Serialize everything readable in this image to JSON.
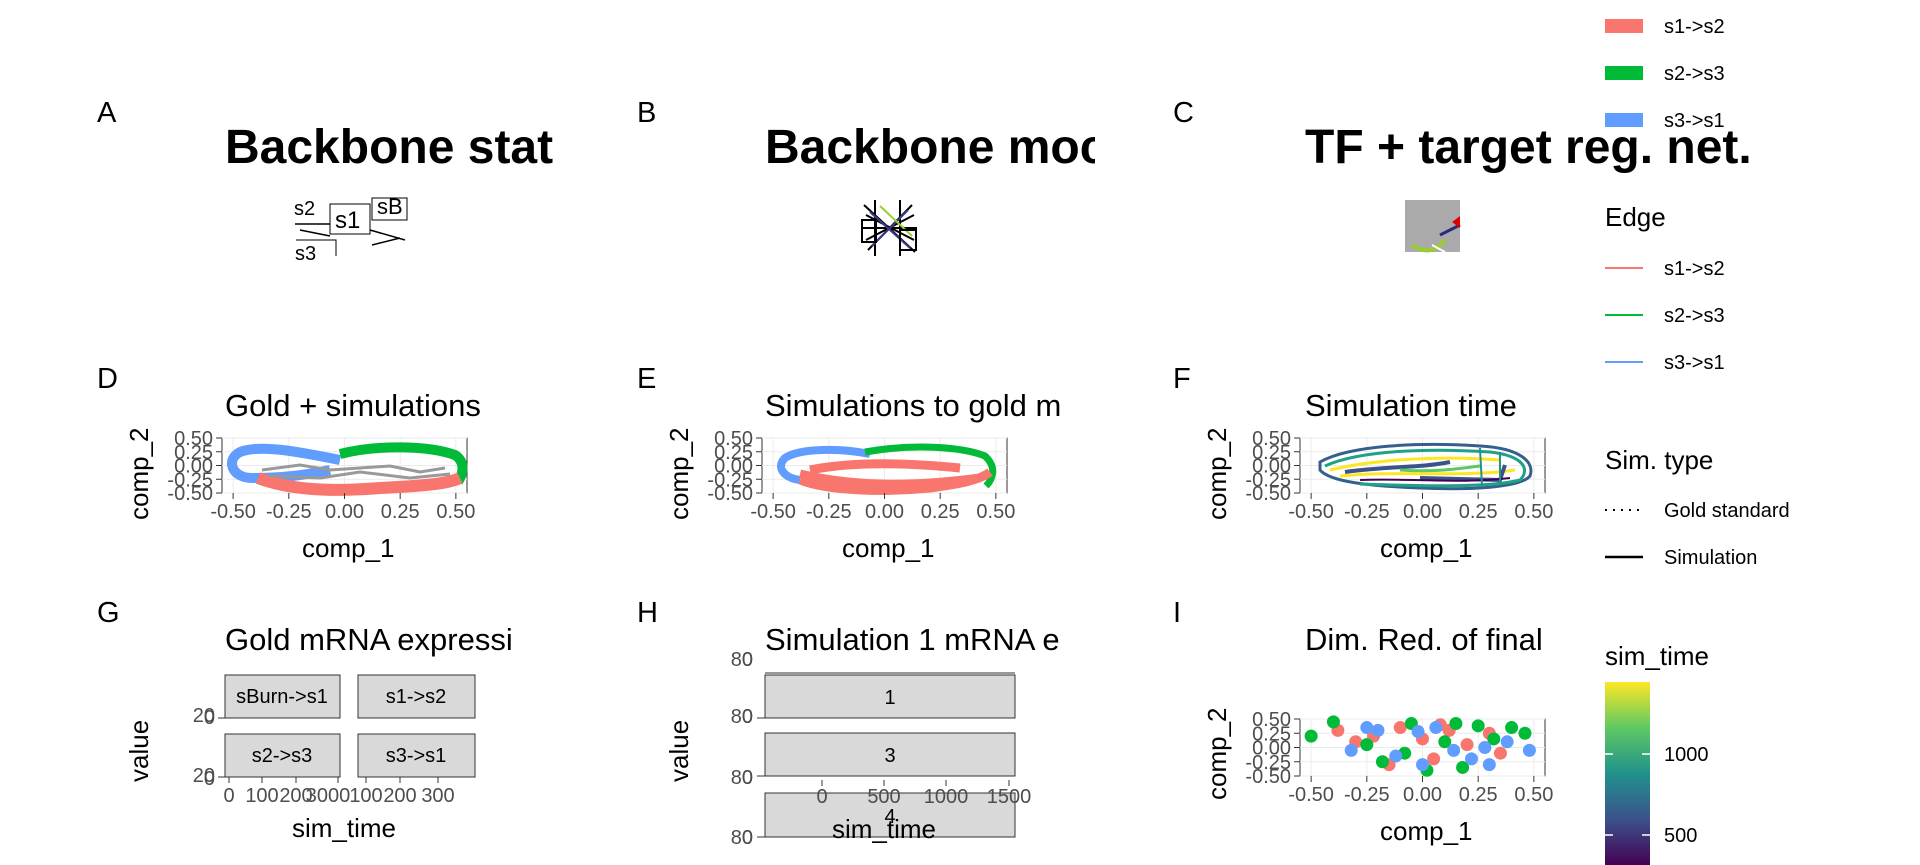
{
  "panels": [
    {
      "letter": "A",
      "title": "Backbone stat"
    },
    {
      "letter": "B",
      "title": "Backbone moc"
    },
    {
      "letter": "C",
      "title": "TF + target reg. net."
    },
    {
      "letter": "D",
      "title": "Gold + simulations"
    },
    {
      "letter": "E",
      "title": "Simulations to gold m"
    },
    {
      "letter": "F",
      "title": "Simulation time"
    },
    {
      "letter": "G",
      "title": "Gold mRNA expressi"
    },
    {
      "letter": "H",
      "title": "Simulation 1 mRNA e"
    },
    {
      "letter": "I",
      "title": "Dim. Red. of final"
    }
  ],
  "graph_labels": {
    "s1": "s1",
    "s2": "s2",
    "s3": "s3",
    "sburn": "sB"
  },
  "legend": {
    "milestones": [
      "s1->s2",
      "s2->s3",
      "s3->s1"
    ],
    "edge_title": "Edge",
    "edges": [
      "s1->s2",
      "s2->s3",
      "s3->s1"
    ],
    "simtype_title": "Sim. type",
    "simtypes": [
      "Gold standard",
      "Simulation"
    ],
    "simtime_title": "sim_time",
    "simtime_ticks": [
      "1000",
      "500"
    ],
    "colors": {
      "s1->s2": "#F8766D",
      "s2->s3": "#00BA38",
      "s3->s1": "#619CFF"
    }
  },
  "chart_data": [
    {
      "panel": "D",
      "type": "line",
      "xlabel": "comp_1",
      "ylabel": "comp_2",
      "xlim": [
        -0.55,
        0.55
      ],
      "ylim": [
        -0.5,
        0.5
      ],
      "xticks": [
        "-0.50",
        "-0.25",
        "0.00",
        "0.25",
        "0.50"
      ],
      "yticks": [
        "0.50",
        "0.25",
        "0.00",
        "-0.25",
        "-0.50"
      ],
      "grid": true,
      "series": [
        {
          "name": "s3->s1",
          "x": [
            -0.05,
            -0.2,
            -0.38,
            -0.45,
            -0.42,
            -0.3,
            -0.15
          ],
          "y": [
            0.32,
            0.34,
            0.28,
            0.05,
            -0.18,
            -0.3,
            -0.28
          ]
        },
        {
          "name": "s2->s3",
          "x": [
            -0.05,
            0.1,
            0.3,
            0.42,
            0.46,
            0.44
          ],
          "y": [
            0.32,
            0.36,
            0.33,
            0.25,
            0.05,
            -0.1
          ]
        },
        {
          "name": "s1->s2",
          "x": [
            -0.15,
            0.0,
            0.2,
            0.35,
            0.44
          ],
          "y": [
            -0.28,
            -0.35,
            -0.38,
            -0.32,
            -0.1
          ]
        }
      ]
    },
    {
      "panel": "E",
      "type": "line",
      "xlabel": "comp_1",
      "ylabel": "comp_2",
      "xlim": [
        -0.55,
        0.55
      ],
      "ylim": [
        -0.5,
        0.5
      ],
      "xticks": [
        "-0.50",
        "-0.25",
        "0.00",
        "0.25",
        "0.50"
      ],
      "yticks": [
        "0.50",
        "0.25",
        "0.00",
        "-0.25",
        "-0.50"
      ],
      "grid": true
    },
    {
      "panel": "F",
      "type": "line",
      "xlabel": "comp_1",
      "ylabel": "comp_2",
      "xlim": [
        -0.55,
        0.55
      ],
      "ylim": [
        -0.5,
        0.5
      ],
      "xticks": [
        "-0.50",
        "-0.25",
        "0.00",
        "0.25",
        "0.50"
      ],
      "yticks": [
        "0.50",
        "0.25",
        "0.00",
        "-0.25",
        "-0.50"
      ],
      "grid": true
    },
    {
      "panel": "G",
      "type": "line",
      "xlabel": "sim_time",
      "ylabel": "value",
      "facets": [
        "sBurn->s1",
        "s1->s2",
        "s2->s3",
        "s3->s1"
      ],
      "xticks": [
        "0",
        "100",
        "200",
        "3000",
        "100",
        "200",
        "300"
      ],
      "yticks_top": [
        "20",
        "0"
      ],
      "yticks_bottom": [
        "20",
        "0"
      ]
    },
    {
      "panel": "H",
      "type": "line",
      "xlabel": "sim_time",
      "ylabel": "value",
      "facets": [
        "1",
        "3",
        "4"
      ],
      "xticks": [
        "0",
        "500",
        "1000",
        "1500"
      ],
      "yticks_top": [
        "80",
        "0"
      ],
      "yticks_mid": [
        "80",
        "0"
      ],
      "yticks_bottom": [
        "80",
        "0"
      ]
    },
    {
      "panel": "I",
      "type": "scatter",
      "xlabel": "comp_1",
      "ylabel": "comp_2",
      "xlim": [
        -0.55,
        0.55
      ],
      "ylim": [
        -0.5,
        0.5
      ],
      "xticks": [
        "-0.50",
        "-0.25",
        "0.00",
        "0.25",
        "0.50"
      ],
      "yticks": [
        "0.50",
        "0.25",
        "0.00",
        "-0.25",
        "-0.50"
      ],
      "grid": true,
      "series": [
        {
          "name": "s1->s2",
          "x": [
            -0.38,
            -0.3,
            -0.22,
            -0.1,
            0.0,
            0.05,
            0.12,
            0.2,
            0.3,
            0.35,
            -0.15,
            0.08
          ],
          "y": [
            0.3,
            0.1,
            0.2,
            0.35,
            0.15,
            -0.2,
            0.3,
            0.05,
            0.25,
            -0.1,
            -0.3,
            0.4
          ]
        },
        {
          "name": "s2->s3",
          "x": [
            -0.5,
            -0.4,
            -0.25,
            -0.18,
            -0.05,
            0.02,
            0.1,
            0.18,
            0.25,
            0.4,
            0.46,
            -0.08,
            0.15,
            0.32
          ],
          "y": [
            0.2,
            0.45,
            0.05,
            -0.25,
            0.42,
            -0.4,
            0.1,
            -0.35,
            0.38,
            0.35,
            0.25,
            -0.1,
            0.42,
            0.15
          ]
        },
        {
          "name": "s3->s1",
          "x": [
            -0.32,
            -0.2,
            -0.12,
            -0.02,
            0.06,
            0.14,
            0.22,
            0.28,
            0.38,
            0.48,
            -0.25,
            0.0,
            0.3
          ],
          "y": [
            -0.05,
            0.3,
            -0.15,
            0.28,
            0.35,
            -0.05,
            -0.2,
            0.0,
            0.1,
            -0.05,
            0.35,
            -0.3,
            -0.3
          ]
        }
      ]
    }
  ]
}
